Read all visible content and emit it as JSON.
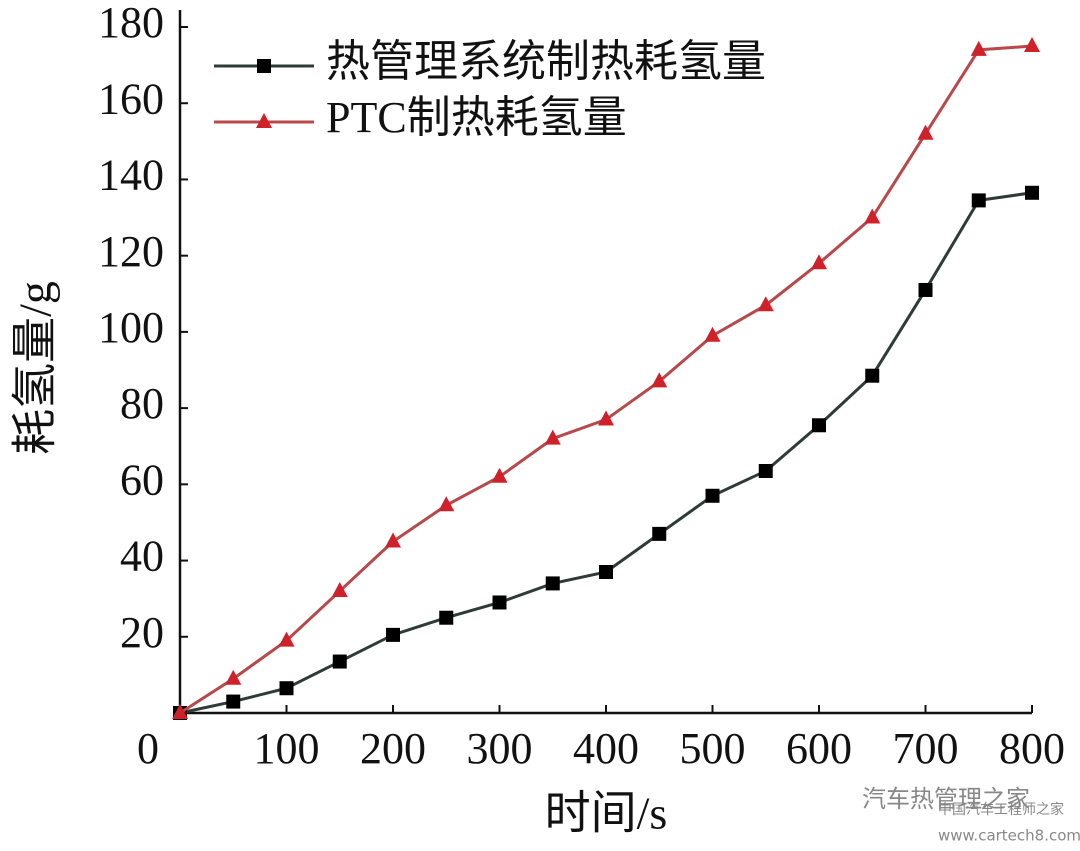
{
  "chart_data": {
    "type": "line",
    "xlabel": "时间/s",
    "ylabel": "耗氢量/g",
    "x": [
      0,
      50,
      100,
      150,
      200,
      250,
      300,
      350,
      400,
      450,
      500,
      550,
      600,
      650,
      700,
      750,
      800
    ],
    "series": [
      {
        "name": "热管理系统制热耗氢量",
        "color": "#2e3b37",
        "marker_color": "#000000",
        "marker": "square",
        "values": [
          0,
          3,
          6.5,
          13.5,
          20.5,
          25,
          29,
          34,
          37,
          47,
          57,
          63.5,
          75.5,
          88.5,
          111,
          134.5,
          136.5
        ]
      },
      {
        "name": "PTC制热耗氢量",
        "color": "#b8484a",
        "marker_color": "#d0202a",
        "marker": "triangle",
        "values": [
          0,
          9,
          19,
          32,
          45,
          54.5,
          62,
          72,
          77,
          87,
          99,
          107,
          118,
          130,
          152,
          174,
          175
        ]
      }
    ],
    "xlim": [
      0,
      800
    ],
    "xticks": [
      0,
      100,
      200,
      300,
      400,
      500,
      600,
      700,
      800
    ],
    "ylim": [
      0,
      180
    ],
    "yticks": [
      20,
      40,
      60,
      80,
      100,
      120,
      140,
      160,
      180
    ],
    "legend": "upper left",
    "watermark": [
      "汽车热管理之家",
      "中国汽车工程师之家",
      "www.cartech8.com"
    ]
  }
}
